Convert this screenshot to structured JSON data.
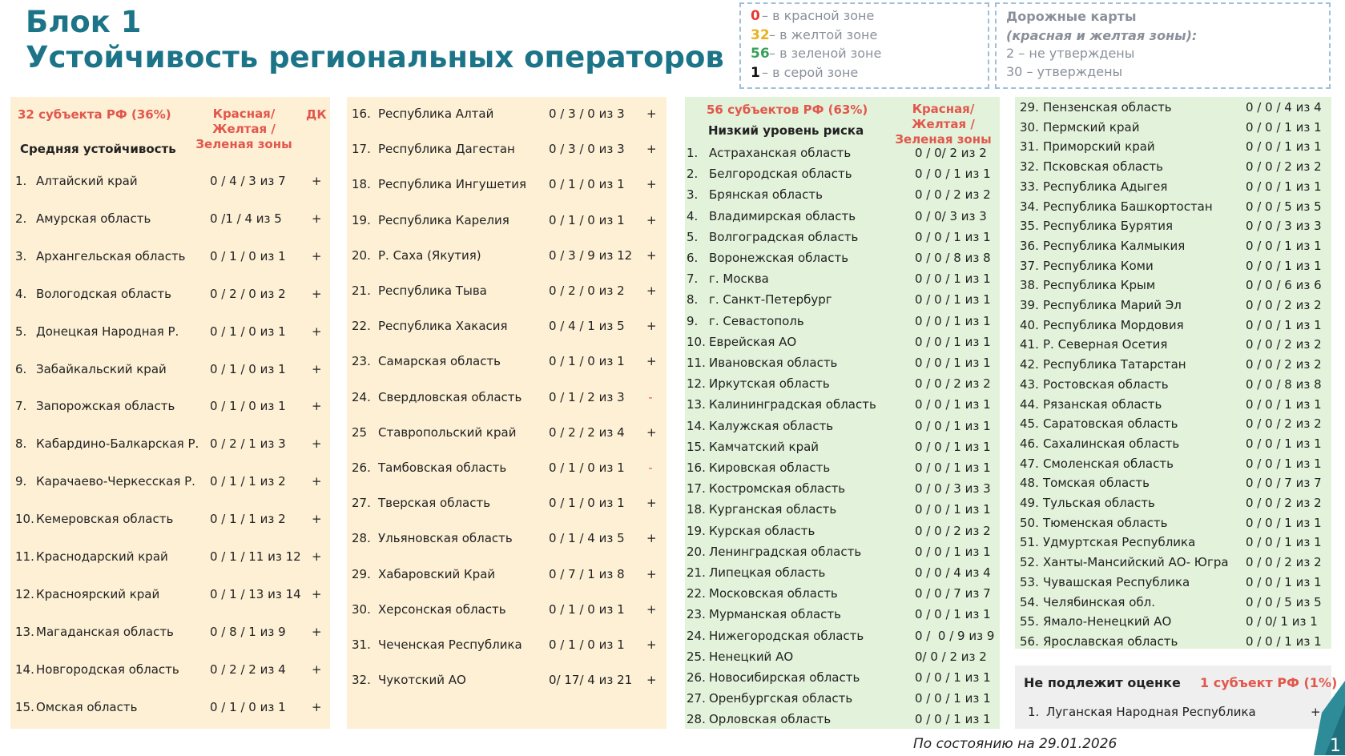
{
  "header": {
    "title_line1": "Блок 1",
    "title_line2": "Устойчивость региональных операторов"
  },
  "legend": {
    "items": [
      {
        "num": "0",
        "text": "– в красной зоне"
      },
      {
        "num": "32",
        "text": "– в желтой зоне"
      },
      {
        "num": "56",
        "text": "– в зеленой зоне"
      },
      {
        "num": "1",
        "text": "– в серой зоне"
      }
    ]
  },
  "roadmaps": {
    "title": "Дорожные карты",
    "subtitle": "(красная и желтая зоны):",
    "items": [
      "2 – не утверждены",
      "30 – утверждены"
    ]
  },
  "yellow_block": {
    "count": "32 субъекта РФ (36%)",
    "zones_header": "Красная/Желтая /Зеленая зоны",
    "dk_header": "ДК",
    "subheader": "Средняя устойчивость",
    "rows": [
      [
        "1.",
        "Алтайский край",
        "0 / 4 / 3 из 7",
        "+"
      ],
      [
        "2.",
        "Амурская область",
        "0 /1 / 4 из 5",
        "+"
      ],
      [
        "3.",
        "Архангельская область",
        "0 / 1 / 0 из 1",
        "+"
      ],
      [
        "4.",
        "Вологодская область",
        "0 / 2 / 0 из 2",
        "+"
      ],
      [
        "5.",
        "Донецкая Народная Р.",
        "0 / 1 / 0 из 1",
        "+"
      ],
      [
        "6.",
        "Забайкальский край",
        "0 / 1 / 0 из 1",
        "+"
      ],
      [
        "7.",
        "Запорожская область",
        "0 / 1 / 0 из 1",
        "+"
      ],
      [
        "8.",
        "Кабардино-Балкарская Р.",
        "0 / 2 / 1 из 3",
        "+"
      ],
      [
        "9.",
        "Карачаево-Черкесская Р.",
        "0 / 1 / 1 из 2",
        "+"
      ],
      [
        "10.",
        "Кемеровская область",
        "0 / 1 / 1 из 2",
        "+"
      ],
      [
        "11.",
        "Краснодарский край",
        "0 / 1 / 11 из 12",
        "+"
      ],
      [
        "12.",
        "Красноярский край",
        "0 / 1 / 13 из 14",
        "+"
      ],
      [
        "13.",
        "Магаданская область",
        "0 / 8 / 1 из 9",
        "+"
      ],
      [
        "14.",
        "Новгородская область",
        "0 / 2 / 2 из 4",
        "+"
      ],
      [
        "15.",
        "Омская область",
        "0 / 1 / 0 из 1",
        "+"
      ],
      [
        "16.",
        "Республика Алтай",
        "0 / 3 / 0 из 3",
        "+"
      ],
      [
        "17.",
        "Республика Дагестан",
        "0 / 3 / 0 из 3",
        "+"
      ],
      [
        "18.",
        "Республика Ингушетия",
        "0 / 1 / 0 из 1",
        "+"
      ],
      [
        "19.",
        "Республика Карелия",
        "0 / 1 / 0 из 1",
        "+"
      ],
      [
        "20.",
        "Р. Саха (Якутия)",
        "0 / 3 / 9 из 12",
        "+"
      ],
      [
        "21.",
        "Республика Тыва",
        "0 / 2 / 0 из 2",
        "+"
      ],
      [
        "22.",
        "Республика Хакасия",
        "0 / 4 / 1 из 5",
        "+"
      ],
      [
        "23.",
        "Самарская область",
        "0 / 1 / 0 из 1",
        "+"
      ],
      [
        "24.",
        "Свердловская область",
        "0 / 1 / 2 из 3",
        "-"
      ],
      [
        "25",
        "Ставропольский край",
        "0 / 2 / 2 из 4",
        "+"
      ],
      [
        "26.",
        "Тамбовская область",
        "0 / 1 / 0 из 1",
        "-"
      ],
      [
        "27.",
        "Тверская область",
        "0 / 1 / 0 из 1",
        "+"
      ],
      [
        "28.",
        "Ульяновская область",
        "0 / 1 / 4 из 5",
        "+"
      ],
      [
        "29.",
        "Хабаровский Край",
        "0 / 7 / 1 из 8",
        "+"
      ],
      [
        "30.",
        "Херсонская область",
        "0 / 1 / 0 из 1",
        "+"
      ],
      [
        "31.",
        "Чеченская Республика",
        "0 / 1 / 0 из 1",
        "+"
      ],
      [
        "32.",
        "Чукотский АО",
        "0/ 17/ 4 из 21",
        "+"
      ]
    ]
  },
  "green_block": {
    "count": "56 субъектов РФ (63%)",
    "zones_header": "Красная/Желтая /Зеленая зоны",
    "subheader": "Низкий уровень риска",
    "rows": [
      [
        "1.",
        "Астраханская область",
        "0 / 0/ 2 из 2"
      ],
      [
        "2.",
        "Белгородская область",
        "0 / 0 / 1 из 1"
      ],
      [
        "3.",
        "Брянская область",
        "0 / 0 / 2 из 2"
      ],
      [
        "4.",
        "Владимирская область",
        "0 / 0/ 3 из 3"
      ],
      [
        "5.",
        "Волгоградская область",
        "0 / 0 / 1 из 1"
      ],
      [
        "6.",
        "Воронежская область",
        "0 / 0 / 8 из 8"
      ],
      [
        "7.",
        "г. Москва",
        "0 / 0 / 1 из 1"
      ],
      [
        "8.",
        "г. Санкт-Петербург",
        "0 / 0 / 1 из 1"
      ],
      [
        "9.",
        "г. Севастополь",
        "0 / 0 / 1 из 1"
      ],
      [
        "10.",
        "Еврейская АО",
        "0 / 0 / 1 из 1"
      ],
      [
        "11.",
        "Ивановская область",
        "0 / 0 / 1 из 1"
      ],
      [
        "12.",
        "Иркутская область",
        "0 / 0 / 2 из 2"
      ],
      [
        "13.",
        "Калининградская область",
        "0 / 0 / 1 из 1"
      ],
      [
        "14.",
        "Калужская область",
        "0 / 0 / 1 из 1"
      ],
      [
        "15.",
        "Камчатский край",
        "0 / 0 / 1 из 1"
      ],
      [
        "16.",
        "Кировская область",
        "0 / 0 / 1 из 1"
      ],
      [
        "17.",
        "Костромская область",
        "0 / 0 / 3 из 3"
      ],
      [
        "18.",
        "Курганская область",
        "0 / 0 / 1 из 1"
      ],
      [
        "19.",
        "Курская область",
        "0 / 0 / 2 из 2"
      ],
      [
        "20.",
        "Ленинградская область",
        "0 / 0 / 1 из 1"
      ],
      [
        "21.",
        "Липецкая область",
        "0 / 0 / 4 из 4"
      ],
      [
        "22.",
        "Московская область",
        "0 / 0 / 7 из 7"
      ],
      [
        "23.",
        "Мурманская область",
        "0 / 0 / 1 из 1"
      ],
      [
        "24.",
        "Нижегородская область",
        "0 /  0 / 9 из 9"
      ],
      [
        "25.",
        "Ненецкий АО",
        "0/ 0 / 2 из 2"
      ],
      [
        "26.",
        "Новосибирская область",
        "0 / 0 / 1 из 1"
      ],
      [
        "27.",
        "Оренбургская область",
        "0 / 0 / 1 из 1"
      ],
      [
        "28.",
        "Орловская область",
        "0 / 0 / 1 из 1"
      ],
      [
        "29.",
        "Пензенская область",
        "0 / 0 / 4 из 4"
      ],
      [
        "30.",
        "Пермский край",
        "0 / 0 / 1 из 1"
      ],
      [
        "31.",
        "Приморский край",
        "0 / 0 / 1 из 1"
      ],
      [
        "32.",
        "Псковская область",
        "0 / 0 / 2 из 2"
      ],
      [
        "33.",
        "Республика Адыгея",
        "0 / 0 / 1 из 1"
      ],
      [
        "34.",
        "Республика Башкортостан",
        "0 / 0 / 5 из 5"
      ],
      [
        "35.",
        "Республика Бурятия",
        "0 / 0 / 3 из 3"
      ],
      [
        "36.",
        "Республика Калмыкия",
        "0 / 0 / 1 из 1"
      ],
      [
        "37.",
        "Республика Коми",
        "0 / 0 / 1 из 1"
      ],
      [
        "38.",
        "Республика Крым",
        "0 / 0 / 6 из 6"
      ],
      [
        "39.",
        "Республика Марий Эл",
        "0 / 0 / 2 из 2"
      ],
      [
        "40.",
        "Республика Мордовия",
        "0 / 0 / 1 из 1"
      ],
      [
        "41.",
        "Р. Северная Осетия",
        "0 / 0 / 2 из 2"
      ],
      [
        "42.",
        "Республика Татарстан",
        "0 / 0 / 2 из 2"
      ],
      [
        "43.",
        "Ростовская область",
        "0 / 0 / 8 из 8"
      ],
      [
        "44.",
        "Рязанская область",
        "0 / 0 / 1 из 1"
      ],
      [
        "45.",
        "Саратовская область",
        "0 / 0 / 2 из 2"
      ],
      [
        "46.",
        "Сахалинская область",
        "0 / 0 / 1 из 1"
      ],
      [
        "47.",
        "Смоленская область",
        "0 / 0 / 1 из 1"
      ],
      [
        "48.",
        "Томская область",
        "0 / 0 / 7 из 7"
      ],
      [
        "49.",
        "Тульская область",
        "0 / 0 / 2 из 2"
      ],
      [
        "50.",
        "Тюменская область",
        "0 / 0 / 1 из 1"
      ],
      [
        "51.",
        "Удмуртская Республика",
        "0 / 0 / 1 из 1"
      ],
      [
        "52.",
        "Ханты-Мансийский АО- Югра",
        "0 / 0 / 2 из 2"
      ],
      [
        "53.",
        "Чувашская Республика",
        "0 / 0 / 1 из 1"
      ],
      [
        "54.",
        "Челябинская обл.",
        "0 / 0 / 5 из 5"
      ],
      [
        "55.",
        "Ямало-Ненецкий АО",
        "0 / 0/ 1 из 1"
      ],
      [
        "56.",
        "Ярославская область",
        "0 / 0 / 1 из 1"
      ]
    ]
  },
  "excluded": {
    "title": "Не подлежит оценке",
    "count": "1 субъект РФ (1%)",
    "rows": [
      [
        "1.",
        "Луганская Народная Республика",
        "+"
      ]
    ]
  },
  "footer": {
    "date": "По состоянию на 29.01.2026",
    "page": "1"
  }
}
